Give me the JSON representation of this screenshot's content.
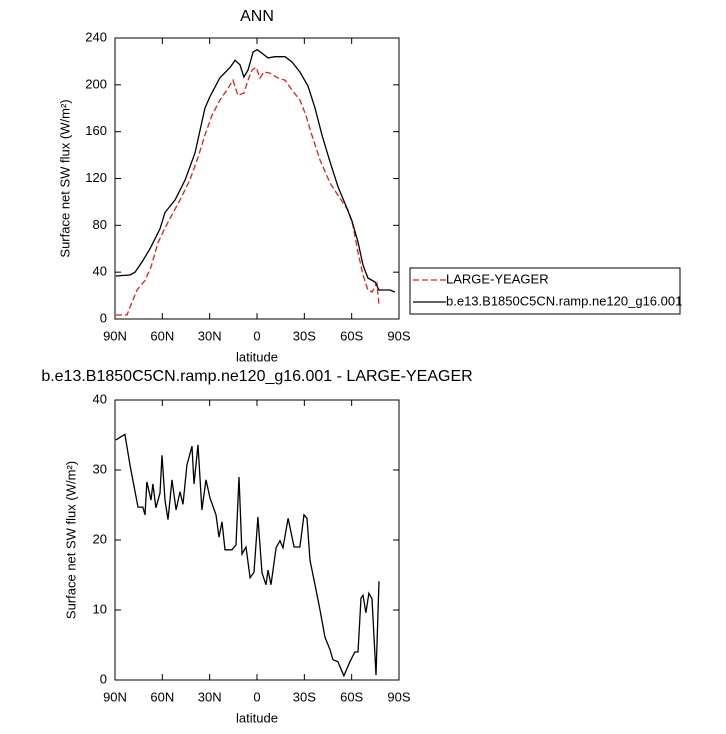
{
  "chart_data": [
    {
      "type": "line",
      "title": "ANN",
      "xlabel": "latitude",
      "ylabel": "Surface net SW flux (W/m²)",
      "xlim": [
        90,
        -90
      ],
      "xticks": [
        {
          "value": 90,
          "label": "90N"
        },
        {
          "value": 60,
          "label": "60N"
        },
        {
          "value": 30,
          "label": "30N"
        },
        0,
        {
          "value": -30,
          "label": "30S"
        },
        {
          "value": -60,
          "label": "60S"
        },
        {
          "value": -90,
          "label": "90S"
        }
      ],
      "ylim": [
        0,
        240
      ],
      "yticks": [
        0,
        40,
        80,
        120,
        160,
        200,
        240
      ],
      "legend": "right",
      "series": [
        {
          "name": "LARGE-YEAGER",
          "color": "#e0201b",
          "dashed": true,
          "x": [
            89.4,
            82.4,
            79.9,
            76,
            71,
            67.2,
            62.8,
            58.3,
            55.1,
            48.8,
            42.5,
            37.4,
            33,
            28.5,
            23.5,
            18.4,
            15.2,
            12.1,
            8.3,
            5.7,
            3.2,
            0.6,
            -1.9,
            -4.4,
            -8.2,
            -13.3,
            -17.8,
            -22.2,
            -27.2,
            -31,
            -34.8,
            -39.9,
            -46.3,
            -52.6,
            -57.7,
            -60.8,
            -64,
            -67.2,
            -70.3,
            -72.9,
            -76,
            -77.3
          ],
          "values": [
            3.4,
            3.4,
            12,
            24.8,
            33,
            44.4,
            65,
            77.7,
            86,
            101.6,
            118.7,
            138,
            157,
            174,
            187,
            197,
            204,
            191,
            193,
            204,
            212.6,
            215,
            205.8,
            211,
            210,
            205.8,
            204,
            195.6,
            187,
            174,
            157,
            135.8,
            116,
            103,
            93,
            80,
            57,
            37.6,
            24.8,
            23,
            30.7,
            12
          ]
        },
        {
          "name": "b.e13.B1850C5CN.ramp.ne120_g16.001",
          "color": "#000000",
          "dashed": false,
          "x": [
            89.4,
            80.5,
            77.3,
            72.9,
            67.8,
            61.5,
            58.3,
            52,
            45.6,
            39.3,
            33,
            29.8,
            23.5,
            17,
            13.9,
            10.8,
            8.3,
            5.7,
            2.5,
            0,
            -3.2,
            -7,
            -11.4,
            -17.8,
            -22.2,
            -27.2,
            -32.3,
            -36.8,
            -41.2,
            -46.3,
            -51.4,
            -56.4,
            -60.2,
            -64,
            -67.2,
            -70.3,
            -74.8,
            -77.3,
            -84.3,
            -87.4
          ],
          "values": [
            36.7,
            37.6,
            40,
            48.7,
            60,
            77,
            91,
            101.6,
            118.7,
            141.8,
            180,
            190,
            206,
            215,
            221,
            217,
            206.7,
            212.6,
            228,
            230,
            227,
            223,
            224,
            224,
            219.5,
            211,
            199,
            180,
            157,
            134,
            112.7,
            96.5,
            83.7,
            65.8,
            46,
            35,
            31.6,
            24.8,
            24.8,
            23
          ]
        }
      ]
    },
    {
      "type": "line",
      "title": "b.e13.B1850C5CN.ramp.ne120_g16.001 - LARGE-YEAGER",
      "xlabel": "latitude",
      "ylabel": "Surface net SW flux (W/m²)",
      "xlim": [
        90,
        -90
      ],
      "xticks": [
        {
          "value": 90,
          "label": "90N"
        },
        {
          "value": 60,
          "label": "60N"
        },
        {
          "value": 30,
          "label": "30N"
        },
        0,
        {
          "value": -30,
          "label": "30S"
        },
        {
          "value": -60,
          "label": "60S"
        },
        {
          "value": -90,
          "label": "90S"
        }
      ],
      "ylim": [
        0,
        40
      ],
      "yticks": [
        0,
        10,
        20,
        30,
        40
      ],
      "color": "#000000",
      "x": [
        89.4,
        83.7,
        80.5,
        75.4,
        72.3,
        71,
        69.8,
        67.2,
        66,
        64.1,
        61.5,
        60.2,
        58.3,
        56.4,
        53.9,
        51.3,
        48.8,
        46.9,
        44.4,
        41.2,
        39.9,
        37.4,
        34.9,
        32.3,
        29.8,
        26,
        24.1,
        22.2,
        20.3,
        15.9,
        13.3,
        11.4,
        9.5,
        7,
        4.4,
        1.9,
        -0.6,
        -3.2,
        -5.7,
        -7,
        -8.9,
        -12.1,
        -14.6,
        -16.5,
        -19.7,
        -23.5,
        -27.2,
        -29.8,
        -31.7,
        -33.6,
        -37.4,
        -39.9,
        -43.1,
        -46.3,
        -48.1,
        -51.3,
        -55.1,
        -58.9,
        -62,
        -64,
        -65.9,
        -67.2,
        -69,
        -70.9,
        -72.9,
        -75.4,
        -77.3
      ],
      "values": [
        34.3,
        35.1,
        30.7,
        24.7,
        24.7,
        23.6,
        28.3,
        25.7,
        28,
        24.6,
        26.7,
        32.1,
        25.7,
        22.9,
        28.6,
        24.3,
        26.9,
        25.1,
        30.7,
        33.4,
        28,
        33.6,
        24.3,
        28.6,
        26,
        23.6,
        20.4,
        22.6,
        18.6,
        18.6,
        19.3,
        29,
        18,
        19,
        14.6,
        15.4,
        23.3,
        15.3,
        13.6,
        15.7,
        13.6,
        18.9,
        19.9,
        18.9,
        23.1,
        19,
        19,
        23.6,
        23.1,
        17.1,
        12.9,
        10,
        6.1,
        4.3,
        2.9,
        2.6,
        0.6,
        2.6,
        4,
        4,
        11.7,
        12.1,
        9.6,
        12.4,
        11.6,
        0.7,
        14.1
      ]
    }
  ]
}
